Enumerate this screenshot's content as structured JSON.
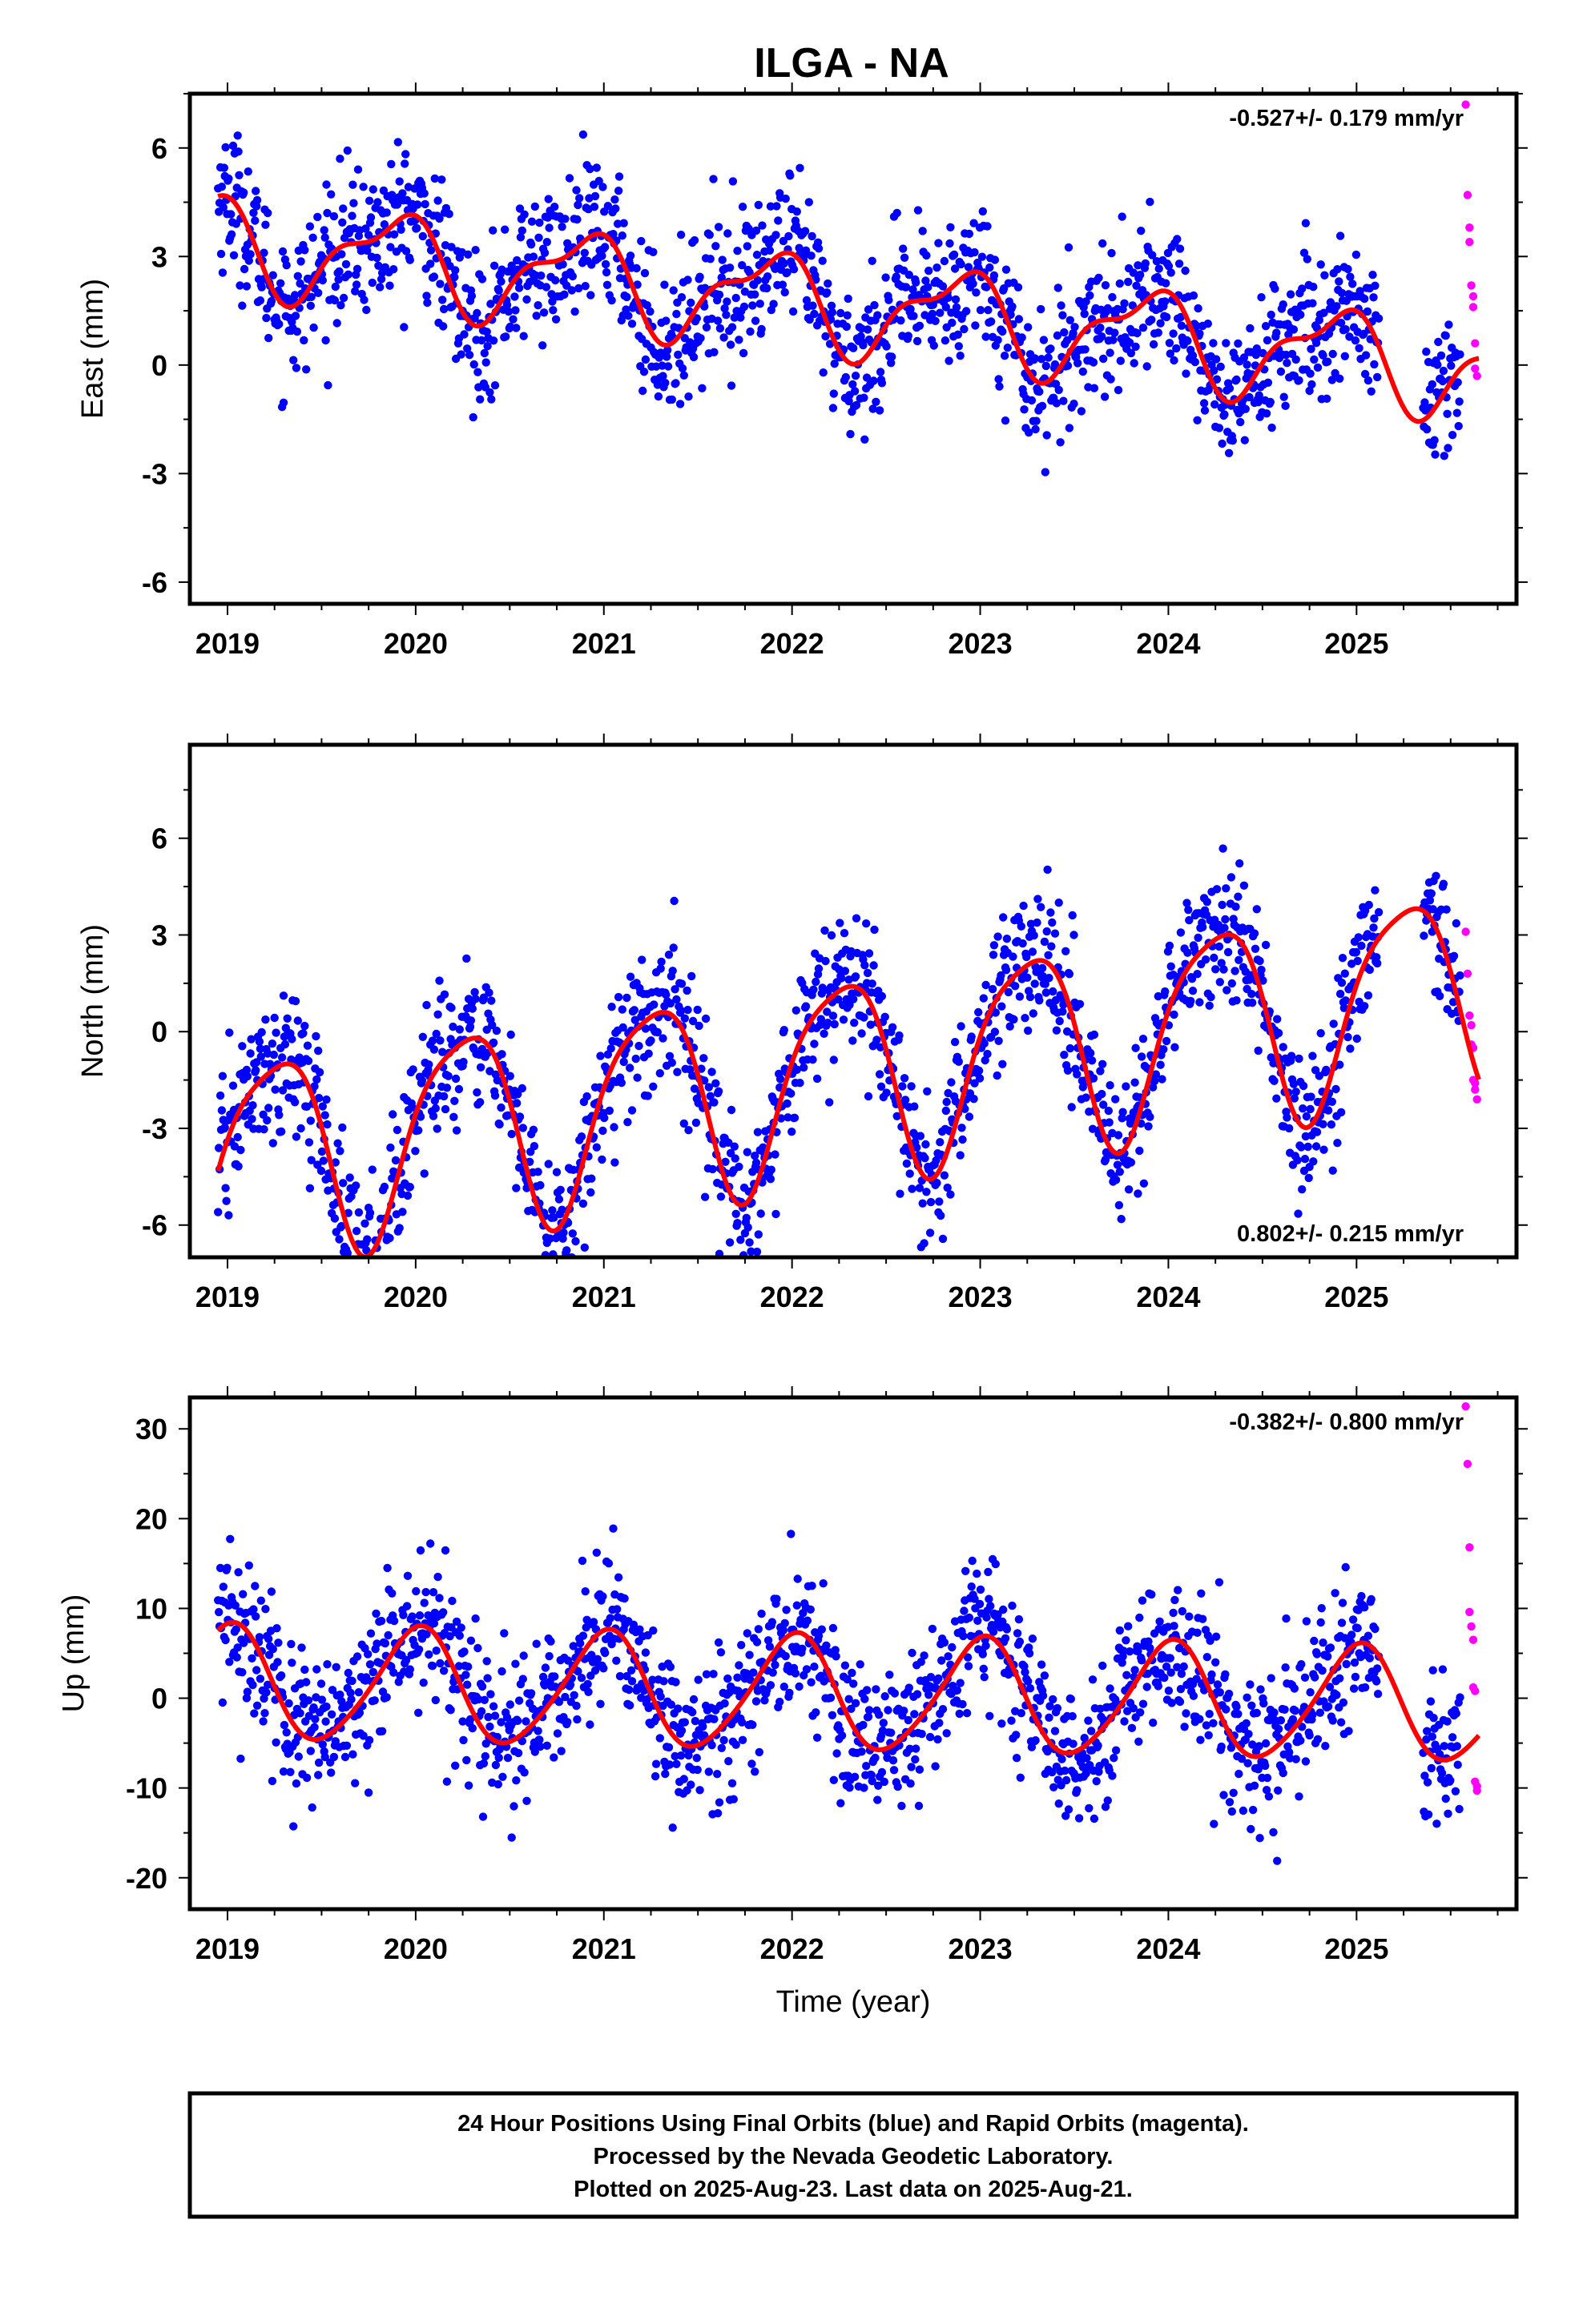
{
  "figure": {
    "title": "ILGA - NA",
    "footer": [
      "24 Hour Positions Using Final Orbits (blue) and Rapid Orbits (magenta).",
      "Processed by the Nevada Geodetic Laboratory.",
      "Plotted on 2025-Aug-23. Last data on 2025-Aug-21."
    ],
    "colors": {
      "final_orbits": "#0000ff",
      "rapid_orbits": "#ff00ff",
      "model_fit": "#ff0000",
      "frame": "#000000"
    }
  },
  "chart_data": [
    {
      "type": "scatter",
      "component": "East",
      "ylabel": "East (mm)",
      "xlabel": "",
      "xlim": [
        2018.8,
        2025.85
      ],
      "ylim": [
        -6.6,
        7.5
      ],
      "xticks": [
        2019,
        2020,
        2021,
        2022,
        2023,
        2024,
        2025
      ],
      "yticks": [
        -6,
        -3,
        0,
        3,
        6
      ],
      "rate_label": "-0.527+/- 0.179 mm/yr",
      "rate_position": "top-right",
      "model": {
        "offset": 1.8,
        "trend": -0.527,
        "annual_amp": 1.2,
        "annual_phase": 2.35,
        "semiannual_amp": 0.5,
        "semiannual_phase": 1.0
      },
      "scatter_std": 1.0,
      "series": [
        {
          "name": "Final Orbits",
          "color": "#0000ff",
          "x_range": [
            2018.95,
            2025.55
          ]
        },
        {
          "name": "Rapid Orbits",
          "color": "#ff00ff",
          "x": [
            2025.58,
            2025.59,
            2025.6,
            2025.6,
            2025.61,
            2025.62,
            2025.62,
            2025.63,
            2025.63,
            2025.64
          ],
          "y": [
            7.2,
            4.7,
            3.8,
            3.4,
            2.2,
            1.9,
            1.6,
            0.6,
            -0.1,
            -0.3
          ]
        }
      ],
      "fit_line": {
        "name": "Model Fit",
        "color": "#ff0000",
        "x_range": [
          2018.95,
          2025.65
        ]
      }
    },
    {
      "type": "scatter",
      "component": "North",
      "ylabel": "North (mm)",
      "xlabel": "",
      "xlim": [
        2018.8,
        2025.85
      ],
      "ylim": [
        -7.0,
        8.9
      ],
      "xticks": [
        2019,
        2020,
        2021,
        2022,
        2023,
        2024,
        2025
      ],
      "yticks": [
        -6,
        -3,
        0,
        3,
        6
      ],
      "rate_label": "0.802+/- 0.215 mm/yr",
      "rate_position": "bottom-right",
      "model": {
        "offset": -1.5,
        "trend": 0.802,
        "annual_amp": 3.1,
        "annual_phase": 0.0,
        "semiannual_amp": 0.6,
        "semiannual_phase": 2.0
      },
      "scatter_std": 1.1,
      "series": [
        {
          "name": "Final Orbits",
          "color": "#0000ff",
          "x_range": [
            2018.95,
            2025.55
          ]
        },
        {
          "name": "Rapid Orbits",
          "color": "#ff00ff",
          "x": [
            2025.58,
            2025.59,
            2025.6,
            2025.61,
            2025.61,
            2025.62,
            2025.62,
            2025.63,
            2025.63,
            2025.64
          ],
          "y": [
            3.1,
            1.8,
            0.5,
            0.2,
            -0.4,
            -0.5,
            -1.5,
            -1.6,
            -1.8,
            -2.1
          ]
        }
      ],
      "fit_line": {
        "name": "Model Fit",
        "color": "#ff0000",
        "x_range": [
          2018.95,
          2025.65
        ]
      }
    },
    {
      "type": "scatter",
      "component": "Up",
      "ylabel": "Up (mm)",
      "xlabel": "Time (year)",
      "xlim": [
        2018.8,
        2025.85
      ],
      "ylim": [
        -23.5,
        33.5
      ],
      "xticks": [
        2019,
        2020,
        2021,
        2022,
        2023,
        2024,
        2025
      ],
      "yticks": [
        -20,
        -10,
        0,
        10,
        20,
        30
      ],
      "rate_label": "-0.382+/- 0.800 mm/yr",
      "rate_position": "top-right",
      "model": {
        "offset": 0.5,
        "trend": -0.382,
        "annual_amp": 6.3,
        "annual_phase": 1.55,
        "semiannual_amp": 0.8,
        "semiannual_phase": 0.5
      },
      "scatter_std": 4.2,
      "series": [
        {
          "name": "Final Orbits",
          "color": "#0000ff",
          "x_range": [
            2018.95,
            2025.55
          ]
        },
        {
          "name": "Rapid Orbits",
          "color": "#ff00ff",
          "x": [
            2025.58,
            2025.59,
            2025.6,
            2025.6,
            2025.61,
            2025.62,
            2025.62,
            2025.63,
            2025.63,
            2025.64,
            2025.64
          ],
          "y": [
            32.5,
            26.1,
            16.8,
            9.6,
            8.0,
            6.5,
            1.2,
            0.8,
            -9.3,
            -9.8,
            -10.3
          ]
        }
      ],
      "fit_line": {
        "name": "Model Fit",
        "color": "#ff0000",
        "x_range": [
          2018.95,
          2025.65
        ]
      }
    }
  ]
}
